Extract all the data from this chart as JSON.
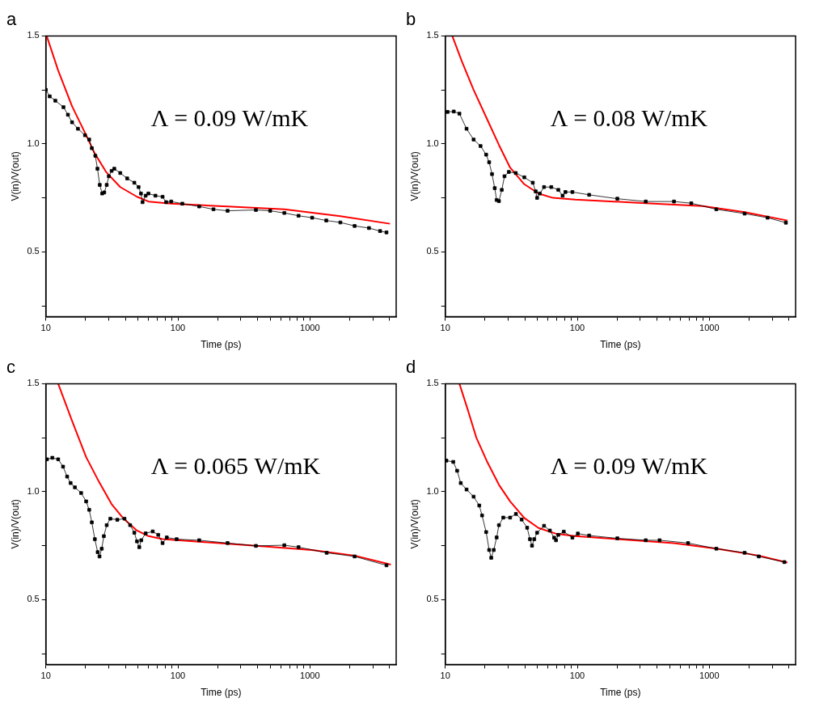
{
  "chart_data": [
    {
      "type": "line",
      "title": "a",
      "xlabel": "Time (ps)",
      "ylabel": "V(in)/V(out)",
      "log": "x",
      "grid": false,
      "legend": false,
      "xlim": [
        10,
        4500
      ],
      "ylim": [
        0.2,
        1.5
      ],
      "xticks": [
        10,
        {
          "value": 20,
          "label": null
        },
        {
          "value": 30,
          "label": null
        },
        {
          "value": 40,
          "label": null
        },
        {
          "value": 50,
          "label": null
        },
        {
          "value": 60,
          "label": null
        },
        {
          "value": 70,
          "label": null
        },
        {
          "value": 80,
          "label": null
        },
        {
          "value": 90,
          "label": null
        },
        100,
        {
          "value": 200,
          "label": null
        },
        {
          "value": 300,
          "label": null
        },
        {
          "value": 400,
          "label": null
        },
        {
          "value": 500,
          "label": null
        },
        {
          "value": 600,
          "label": null
        },
        {
          "value": 700,
          "label": null
        },
        {
          "value": 800,
          "label": null
        },
        {
          "value": 900,
          "label": null
        },
        1000,
        {
          "value": 2000,
          "label": null
        },
        {
          "value": 3000,
          "label": null
        },
        {
          "value": 4000,
          "label": null
        }
      ],
      "yticks": [
        {
          "value": 0.25,
          "label": null
        },
        {
          "value": 0.5,
          "label": "0.5"
        },
        {
          "value": 0.75,
          "label": null
        },
        {
          "value": 1,
          "label": "1.0"
        },
        {
          "value": 1.25,
          "label": null
        },
        {
          "value": 1.5,
          "label": "1.5"
        }
      ],
      "annotations": [
        "Λ = 0.09 W/mK"
      ],
      "series": [
        {
          "color": "#000000",
          "marker": "square",
          "x": [
            10,
            10.7,
            11.8,
            13.6,
            14.7,
            15.8,
            17.5,
            19.8,
            21.3,
            22.3,
            23.7,
            24.6,
            25.6,
            26.7,
            27.7,
            28.9,
            30,
            31.5,
            33,
            36.6,
            41.3,
            46.8,
            50.4,
            52.5,
            54,
            57,
            59.8,
            67.6,
            76.6,
            81.5,
            89,
            108,
            145,
            186,
            238,
            390,
            500,
            640,
            820,
            1040,
            1330,
            1700,
            2180,
            2800,
            3400,
            3800
          ],
          "values": [
            1.25,
            1.22,
            1.2,
            1.17,
            1.135,
            1.1,
            1.07,
            1.04,
            1.02,
            0.98,
            0.945,
            0.885,
            0.81,
            0.77,
            0.775,
            0.81,
            0.85,
            0.875,
            0.885,
            0.865,
            0.84,
            0.82,
            0.8,
            0.77,
            0.73,
            0.76,
            0.77,
            0.76,
            0.755,
            0.73,
            0.733,
            0.723,
            0.71,
            0.697,
            0.69,
            0.694,
            0.69,
            0.68,
            0.667,
            0.658,
            0.645,
            0.636,
            0.62,
            0.61,
            0.596,
            0.59
          ]
        },
        {
          "color": "#ff0000",
          "marker": "none",
          "x": [
            10.15,
            12.4,
            15.8,
            20.2,
            23.5,
            28.6,
            36.6,
            49,
            60,
            89,
            238,
            640,
            1700,
            4040
          ],
          "values": [
            1.5,
            1.34,
            1.174,
            1.04,
            0.955,
            0.87,
            0.8,
            0.755,
            0.733,
            0.723,
            0.71,
            0.697,
            0.665,
            0.63
          ]
        }
      ]
    },
    {
      "type": "line",
      "title": "b",
      "xlabel": "Time (ps)",
      "ylabel": "V(in)/V(out)",
      "log": "x",
      "grid": false,
      "legend": false,
      "xlim": [
        10,
        4500
      ],
      "ylim": [
        0.2,
        1.5
      ],
      "xticks": [
        10,
        {
          "value": 20,
          "label": null
        },
        {
          "value": 30,
          "label": null
        },
        {
          "value": 40,
          "label": null
        },
        {
          "value": 50,
          "label": null
        },
        {
          "value": 60,
          "label": null
        },
        {
          "value": 70,
          "label": null
        },
        {
          "value": 80,
          "label": null
        },
        {
          "value": 90,
          "label": null
        },
        100,
        {
          "value": 200,
          "label": null
        },
        {
          "value": 300,
          "label": null
        },
        {
          "value": 400,
          "label": null
        },
        {
          "value": 500,
          "label": null
        },
        {
          "value": 600,
          "label": null
        },
        {
          "value": 700,
          "label": null
        },
        {
          "value": 800,
          "label": null
        },
        {
          "value": 900,
          "label": null
        },
        1000,
        {
          "value": 2000,
          "label": null
        },
        {
          "value": 3000,
          "label": null
        },
        {
          "value": 4000,
          "label": null
        }
      ],
      "yticks": [
        {
          "value": 0.25,
          "label": null
        },
        {
          "value": 0.5,
          "label": "0.5"
        },
        {
          "value": 0.75,
          "label": null
        },
        {
          "value": 1,
          "label": "1.0"
        },
        {
          "value": 1.25,
          "label": null
        },
        {
          "value": 1.5,
          "label": "1.5"
        }
      ],
      "annotations": [
        "Λ = 0.08 W/mK"
      ],
      "series": [
        {
          "color": "#000000",
          "marker": "square",
          "x": [
            10.4,
            11.6,
            12.8,
            14.5,
            16.4,
            18.5,
            20.4,
            21.5,
            22.6,
            23.7,
            24.5,
            25.5,
            26.8,
            28.1,
            30.3,
            34.2,
            39.7,
            46,
            48.4,
            49.6,
            52,
            56,
            63.5,
            71.8,
            77.4,
            81.3,
            91.8,
            123,
            201,
            330,
            540,
            730,
            1130,
            1850,
            2760,
            3800
          ],
          "values": [
            1.148,
            1.15,
            1.14,
            1.07,
            1.02,
            0.99,
            0.95,
            0.915,
            0.86,
            0.795,
            0.74,
            0.735,
            0.787,
            0.85,
            0.87,
            0.865,
            0.845,
            0.82,
            0.78,
            0.75,
            0.77,
            0.8,
            0.8,
            0.787,
            0.76,
            0.777,
            0.777,
            0.764,
            0.746,
            0.733,
            0.733,
            0.725,
            0.697,
            0.677,
            0.658,
            0.635
          ]
        },
        {
          "color": "#ff0000",
          "marker": "none",
          "x": [
            11.3,
            13.4,
            16.4,
            20.9,
            25.5,
            31,
            39.7,
            50.9,
            65.2,
            96.5,
            330,
            890,
            1850,
            3900
          ],
          "values": [
            1.5,
            1.38,
            1.25,
            1.11,
            0.995,
            0.89,
            0.813,
            0.77,
            0.75,
            0.742,
            0.725,
            0.712,
            0.684,
            0.645
          ]
        }
      ]
    },
    {
      "type": "line",
      "title": "c",
      "xlabel": "Time (ps)",
      "ylabel": "V(in)/V(out)",
      "log": "x",
      "grid": false,
      "legend": false,
      "xlim": [
        10,
        4500
      ],
      "ylim": [
        0.2,
        1.5
      ],
      "xticks": [
        10,
        {
          "value": 20,
          "label": null
        },
        {
          "value": 30,
          "label": null
        },
        {
          "value": 40,
          "label": null
        },
        {
          "value": 50,
          "label": null
        },
        {
          "value": 60,
          "label": null
        },
        {
          "value": 70,
          "label": null
        },
        {
          "value": 80,
          "label": null
        },
        {
          "value": 90,
          "label": null
        },
        100,
        {
          "value": 200,
          "label": null
        },
        {
          "value": 300,
          "label": null
        },
        {
          "value": 400,
          "label": null
        },
        {
          "value": 500,
          "label": null
        },
        {
          "value": 600,
          "label": null
        },
        {
          "value": 700,
          "label": null
        },
        {
          "value": 800,
          "label": null
        },
        {
          "value": 900,
          "label": null
        },
        1000,
        {
          "value": 2000,
          "label": null
        },
        {
          "value": 3000,
          "label": null
        },
        {
          "value": 4000,
          "label": null
        }
      ],
      "yticks": [
        {
          "value": 0.25,
          "label": null
        },
        {
          "value": 0.5,
          "label": "0.5"
        },
        {
          "value": 0.75,
          "label": null
        },
        {
          "value": 1,
          "label": "1.0"
        },
        {
          "value": 1.25,
          "label": null
        },
        {
          "value": 1.5,
          "label": "1.5"
        }
      ],
      "annotations": [
        "Λ = 0.065 W/mK"
      ],
      "series": [
        {
          "color": "#000000",
          "marker": "square",
          "x": [
            10.2,
            11.2,
            12.4,
            13.5,
            14.5,
            15.4,
            16.6,
            18.5,
            20.2,
            21.3,
            22.3,
            23.5,
            24.7,
            25.5,
            26.5,
            27.5,
            28.9,
            30.8,
            34.8,
            39.4,
            43.5,
            46.8,
            49,
            51,
            52.8,
            57,
            64.5,
            71,
            76.6,
            82.4,
            97.9,
            145,
            238,
            390,
            640,
            820,
            1340,
            2180,
            3800
          ],
          "values": [
            1.15,
            1.157,
            1.15,
            1.116,
            1.07,
            1.04,
            1.02,
            0.994,
            0.955,
            0.916,
            0.858,
            0.78,
            0.72,
            0.7,
            0.736,
            0.794,
            0.845,
            0.875,
            0.87,
            0.875,
            0.845,
            0.81,
            0.77,
            0.743,
            0.775,
            0.807,
            0.816,
            0.8,
            0.762,
            0.788,
            0.78,
            0.775,
            0.762,
            0.749,
            0.752,
            0.743,
            0.717,
            0.7,
            0.659
          ]
        },
        {
          "color": "#ff0000",
          "marker": "none",
          "x": [
            12.4,
            15.8,
            20.2,
            25.3,
            31.5,
            38.4,
            49,
            60,
            76.6,
            145,
            390,
            1040,
            2180,
            4100
          ],
          "values": [
            1.5,
            1.328,
            1.16,
            1.045,
            0.942,
            0.878,
            0.82,
            0.794,
            0.78,
            0.768,
            0.749,
            0.73,
            0.704,
            0.662
          ]
        }
      ]
    },
    {
      "type": "line",
      "title": "d",
      "xlabel": "Time (ps)",
      "ylabel": "V(in)/V(out)",
      "log": "x",
      "grid": false,
      "legend": false,
      "xlim": [
        10,
        4500
      ],
      "ylim": [
        0.2,
        1.5
      ],
      "xticks": [
        10,
        {
          "value": 20,
          "label": null
        },
        {
          "value": 30,
          "label": null
        },
        {
          "value": 40,
          "label": null
        },
        {
          "value": 50,
          "label": null
        },
        {
          "value": 60,
          "label": null
        },
        {
          "value": 70,
          "label": null
        },
        {
          "value": 80,
          "label": null
        },
        {
          "value": 90,
          "label": null
        },
        100,
        {
          "value": 200,
          "label": null
        },
        {
          "value": 300,
          "label": null
        },
        {
          "value": 400,
          "label": null
        },
        {
          "value": 500,
          "label": null
        },
        {
          "value": 600,
          "label": null
        },
        {
          "value": 700,
          "label": null
        },
        {
          "value": 800,
          "label": null
        },
        {
          "value": 900,
          "label": null
        },
        1000,
        {
          "value": 2000,
          "label": null
        },
        {
          "value": 3000,
          "label": null
        },
        {
          "value": 4000,
          "label": null
        }
      ],
      "yticks": [
        {
          "value": 0.25,
          "label": null
        },
        {
          "value": 0.5,
          "label": "0.5"
        },
        {
          "value": 0.75,
          "label": null
        },
        {
          "value": 1,
          "label": "1.0"
        },
        {
          "value": 1.25,
          "label": null
        },
        {
          "value": 1.5,
          "label": "1.5"
        }
      ],
      "annotations": [
        "Λ = 0.09 W/mK"
      ],
      "series": [
        {
          "color": "#000000",
          "marker": "square",
          "x": [
            10.2,
            11.5,
            12.3,
            13.1,
            14.5,
            16.4,
            18.1,
            19,
            20.4,
            21.5,
            22.3,
            23.3,
            24.5,
            25.5,
            27.5,
            31,
            34.3,
            37.9,
            41.7,
            43.8,
            45.4,
            47.2,
            49.6,
            56,
            62,
            66.8,
            69,
            71.8,
            79,
            91.8,
            101,
            123,
            201,
            330,
            420,
            690,
            1130,
            1850,
            2370,
            3700
          ],
          "values": [
            1.144,
            1.138,
            1.097,
            1.04,
            1.01,
            0.977,
            0.936,
            0.89,
            0.813,
            0.73,
            0.694,
            0.73,
            0.788,
            0.845,
            0.88,
            0.88,
            0.897,
            0.871,
            0.833,
            0.78,
            0.75,
            0.78,
            0.81,
            0.842,
            0.82,
            0.787,
            0.775,
            0.8,
            0.815,
            0.787,
            0.806,
            0.797,
            0.784,
            0.775,
            0.775,
            0.762,
            0.736,
            0.717,
            0.7,
            0.674
          ]
        },
        {
          "color": "#ff0000",
          "marker": "none",
          "x": [
            12.8,
            14.8,
            17.2,
            20.9,
            25.5,
            31,
            39.7,
            50.9,
            68.5,
            96,
            201,
            540,
            1130,
            2370,
            3900
          ],
          "values": [
            1.5,
            1.38,
            1.25,
            1.135,
            1.032,
            0.955,
            0.878,
            0.832,
            0.806,
            0.794,
            0.78,
            0.762,
            0.736,
            0.704,
            0.672
          ]
        }
      ]
    }
  ]
}
